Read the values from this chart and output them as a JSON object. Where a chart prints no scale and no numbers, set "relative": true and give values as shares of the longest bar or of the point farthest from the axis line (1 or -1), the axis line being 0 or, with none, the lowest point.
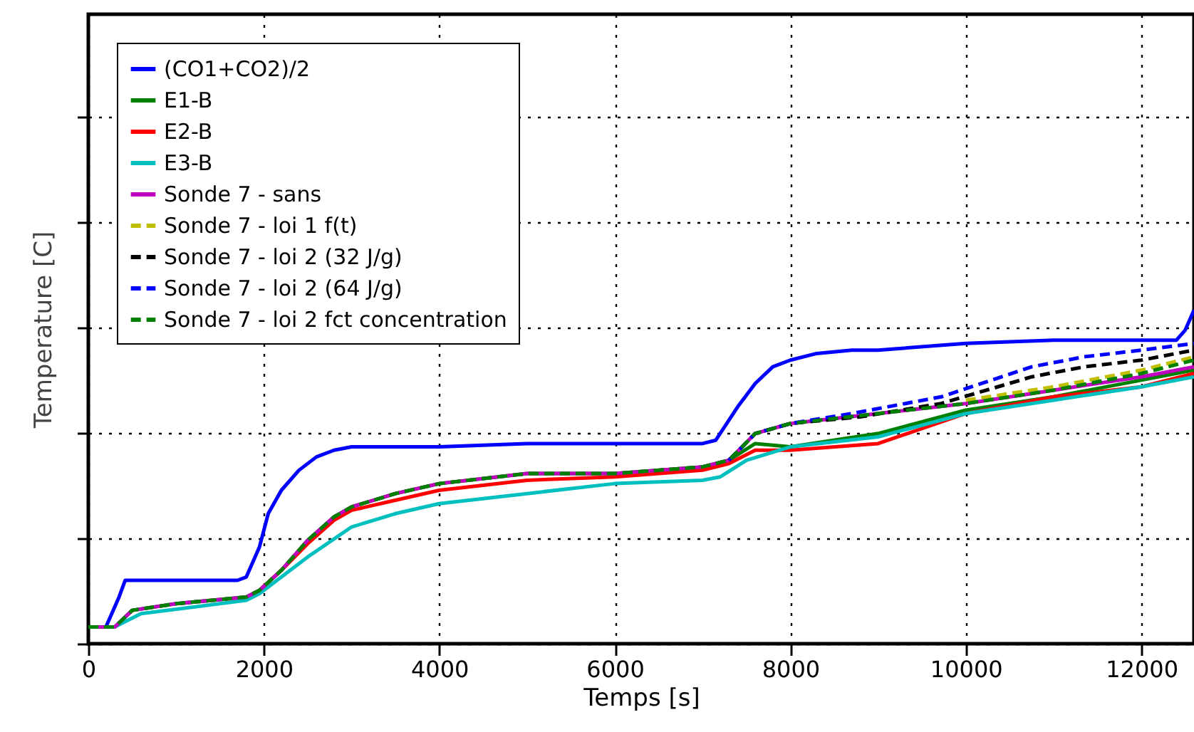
{
  "chart_data": {
    "type": "line",
    "relative": true,
    "xlabel": "Temps [s]",
    "ylabel": "Temperature [C]",
    "xlim": [
      0,
      12600
    ],
    "xticks": [
      0,
      2000,
      4000,
      6000,
      8000,
      10000,
      12000
    ],
    "grid": true,
    "legend": "top left",
    "line_style": "solid",
    "series": [
      {
        "name": "(CO1+CO2)/2",
        "color": "#0000ff",
        "x": [
          200,
          350,
          420,
          1000,
          1700,
          1800,
          1950,
          2050,
          2200,
          2400,
          2600,
          2800,
          3000,
          4000,
          5000,
          6000,
          7000,
          7150,
          7400,
          7600,
          7800,
          8000,
          8300,
          8700,
          9000,
          10000,
          11000,
          12000,
          12400,
          12500,
          12600
        ],
        "values": [
          0.05,
          0.14,
          0.19,
          0.19,
          0.19,
          0.2,
          0.29,
          0.39,
          0.46,
          0.52,
          0.56,
          0.58,
          0.59,
          0.59,
          0.6,
          0.6,
          0.6,
          0.61,
          0.71,
          0.78,
          0.83,
          0.85,
          0.87,
          0.88,
          0.88,
          0.9,
          0.91,
          0.91,
          0.91,
          0.94,
          1
        ]
      },
      {
        "name": "E1-B",
        "color": "#008000",
        "x": [
          0,
          300,
          500,
          1000,
          1800,
          1950,
          2200,
          2500,
          2800,
          3000,
          3500,
          4000,
          5000,
          6000,
          7000,
          7300,
          7600,
          8000,
          9000,
          10000,
          11000,
          12000,
          12600
        ],
        "values": [
          0.05,
          0.05,
          0.1,
          0.12,
          0.14,
          0.16,
          0.22,
          0.31,
          0.38,
          0.41,
          0.45,
          0.48,
          0.51,
          0.51,
          0.53,
          0.55,
          0.6,
          0.59,
          0.63,
          0.7,
          0.74,
          0.79,
          0.82
        ]
      },
      {
        "name": "E2-B",
        "color": "#ff0000",
        "x": [
          1950,
          2200,
          2500,
          2800,
          3000,
          3500,
          4000,
          5000,
          6000,
          7000,
          7300,
          7600,
          8000,
          9000,
          10000,
          11000,
          12000,
          12600
        ],
        "values": [
          0.16,
          0.22,
          0.3,
          0.37,
          0.4,
          0.43,
          0.46,
          0.49,
          0.5,
          0.52,
          0.54,
          0.58,
          0.58,
          0.6,
          0.69,
          0.74,
          0.77,
          0.81
        ]
      },
      {
        "name": "E3-B",
        "color": "#00bfbf",
        "x": [
          0,
          300,
          600,
          1800,
          1950,
          2200,
          2500,
          3000,
          3500,
          4000,
          5000,
          6000,
          7000,
          7200,
          7500,
          8000,
          9000,
          10000,
          11000,
          12000,
          12600
        ],
        "values": [
          0.05,
          0.05,
          0.09,
          0.13,
          0.15,
          0.2,
          0.26,
          0.35,
          0.39,
          0.42,
          0.45,
          0.48,
          0.49,
          0.5,
          0.55,
          0.59,
          0.62,
          0.69,
          0.73,
          0.77,
          0.8
        ]
      },
      {
        "name": "Sonde 7 - sans",
        "color": "#bf00bf",
        "x": [
          0,
          300,
          500,
          1000,
          1800,
          1950,
          2200,
          2500,
          2800,
          3000,
          3500,
          4000,
          5000,
          6000,
          7000,
          7300,
          7600,
          8000,
          9000,
          10000,
          11000,
          12000,
          12600
        ],
        "values": [
          0.05,
          0.05,
          0.1,
          0.12,
          0.14,
          0.16,
          0.22,
          0.31,
          0.38,
          0.41,
          0.45,
          0.48,
          0.51,
          0.51,
          0.53,
          0.55,
          0.63,
          0.66,
          0.69,
          0.72,
          0.76,
          0.8,
          0.83
        ]
      },
      {
        "name": "Sonde 7 - loi 1 f(t)",
        "color": "#bfbf00",
        "line_style": "dashed",
        "x": [
          10000,
          11000,
          12000,
          12600
        ],
        "values": [
          0.73,
          0.77,
          0.82,
          0.86
        ]
      },
      {
        "name": "Sonde 7 - loi 2 (32 J/g)",
        "color": "#000000",
        "line_style": "dashed",
        "x": [
          7300,
          7600,
          8000,
          8800,
          9720,
          10750,
          11350,
          12000,
          12600
        ],
        "values": [
          0.55,
          0.63,
          0.66,
          0.68,
          0.72,
          0.8,
          0.83,
          0.85,
          0.88
        ]
      },
      {
        "name": "Sonde 7 - loi 2 (64 J/g)",
        "color": "#0000ff",
        "line_style": "dashed",
        "x": [
          7300,
          7600,
          8000,
          8700,
          9720,
          10750,
          11350,
          12000,
          12600
        ],
        "values": [
          0.55,
          0.63,
          0.66,
          0.69,
          0.74,
          0.83,
          0.86,
          0.88,
          0.9
        ]
      },
      {
        "name": "Sonde 7 - loi 2 fct concentration",
        "color": "#008000",
        "line_style": "dashed",
        "x": [
          0,
          300,
          500,
          1000,
          1800,
          1950,
          2200,
          2500,
          2800,
          3000,
          3500,
          4000,
          5000,
          6000,
          7000,
          7300,
          7600,
          8000,
          9000,
          10000,
          11000,
          12000,
          12600
        ],
        "values": [
          0.05,
          0.05,
          0.1,
          0.12,
          0.14,
          0.16,
          0.22,
          0.31,
          0.38,
          0.41,
          0.45,
          0.48,
          0.51,
          0.51,
          0.53,
          0.55,
          0.63,
          0.66,
          0.69,
          0.72,
          0.76,
          0.81,
          0.85
        ]
      }
    ]
  }
}
